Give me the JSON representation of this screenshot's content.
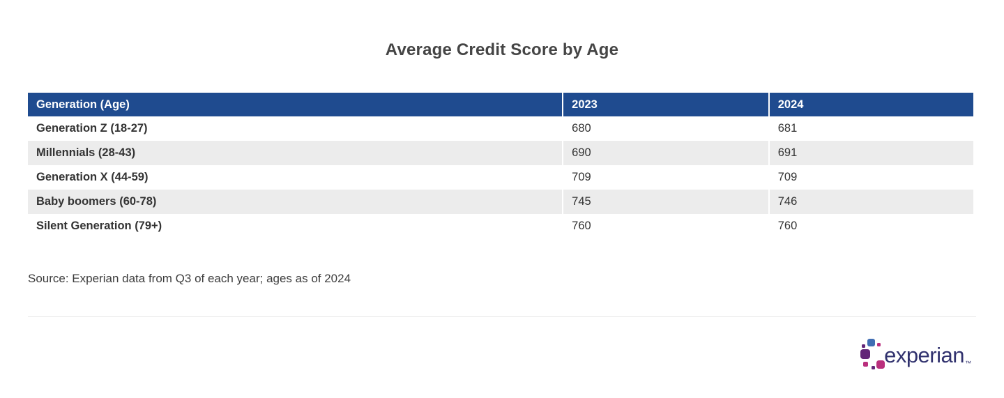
{
  "title": "Average Credit Score by Age",
  "chart_data": {
    "type": "table",
    "title": "Average Credit Score by Age",
    "columns": [
      "Generation (Age)",
      "2023",
      "2024"
    ],
    "rows": [
      [
        "Generation Z (18-27)",
        680,
        681
      ],
      [
        "Millennials (28-43)",
        690,
        691
      ],
      [
        "Generation X (44-59)",
        709,
        709
      ],
      [
        "Baby boomers (60-78)",
        745,
        746
      ],
      [
        "Silent Generation (79+)",
        760,
        760
      ]
    ],
    "source": "Source: Experian data from Q3 of each year; ages as of 2024",
    "layout": {
      "header_style": "solid blue band, white bold text",
      "row_striping": "white / light gray alternating",
      "grid": "off"
    }
  },
  "footer": {
    "logo_text": "experian",
    "logo_trademark": "™"
  },
  "colors": {
    "header_bg": "#1f4b8f",
    "row_stripe": "#ececec",
    "text": "#333333",
    "title_text": "#454545",
    "logo_wordmark": "#31326e",
    "logo_blue": "#406eb3",
    "logo_purple": "#632678",
    "logo_magenta": "#ba2f7d"
  }
}
